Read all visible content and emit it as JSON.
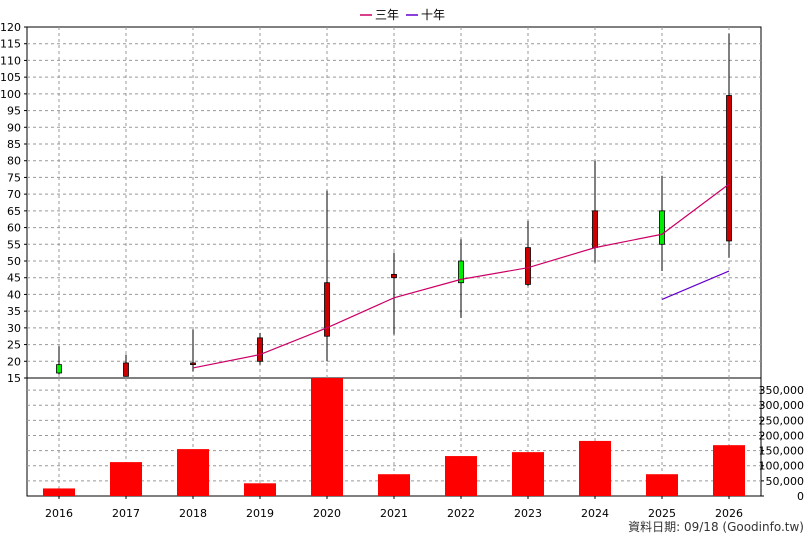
{
  "legend": {
    "items": [
      {
        "label": "三年",
        "color": "#cc0066"
      },
      {
        "label": "十年",
        "color": "#6600cc"
      }
    ]
  },
  "footer": {
    "text": "資料日期: 09/18  (Goodinfo.tw)"
  },
  "colors": {
    "up": "#cc0000",
    "down": "#00ee00",
    "volume": "#ff0000",
    "grid": "#999999"
  },
  "chart_data": [
    {
      "type": "candlestick",
      "categories": [
        "2016",
        "2017",
        "2018",
        "2019",
        "2020",
        "2021",
        "2022",
        "2023",
        "2024",
        "2025",
        "2026"
      ],
      "ylim": [
        15,
        120
      ],
      "yticks": [
        15,
        20,
        25,
        30,
        35,
        40,
        45,
        50,
        55,
        60,
        65,
        70,
        75,
        80,
        85,
        90,
        95,
        100,
        105,
        110,
        115,
        120
      ],
      "ohlc": [
        {
          "open": 19,
          "high": 24.5,
          "low": 16,
          "close": 16.5
        },
        {
          "open": 15.5,
          "high": 22,
          "low": 15.5,
          "close": 19.5
        },
        {
          "open": 19,
          "high": 29.5,
          "low": 17,
          "close": 19.5
        },
        {
          "open": 20,
          "high": 28.5,
          "low": 19,
          "close": 27
        },
        {
          "open": 27.5,
          "high": 71,
          "low": 20,
          "close": 43.5
        },
        {
          "open": 45,
          "high": 52.5,
          "low": 28,
          "close": 46
        },
        {
          "open": 50,
          "high": 56.5,
          "low": 33,
          "close": 43.5
        },
        {
          "open": 43,
          "high": 62,
          "low": 42.5,
          "close": 54
        },
        {
          "open": 54,
          "high": 80,
          "low": 49.5,
          "close": 65
        },
        {
          "open": 65,
          "high": 75.5,
          "low": 47,
          "close": 55
        },
        {
          "open": 56,
          "high": 118,
          "low": 51,
          "close": 99.5
        }
      ],
      "series": [
        {
          "name": "三年",
          "color": "#cc0066",
          "values": [
            null,
            null,
            18,
            22,
            30,
            39,
            44.5,
            48,
            54,
            58,
            73
          ]
        },
        {
          "name": "十年",
          "color": "#6600cc",
          "values": [
            null,
            null,
            null,
            null,
            null,
            null,
            null,
            null,
            null,
            38.5,
            47
          ]
        }
      ],
      "grid": true
    },
    {
      "type": "bar",
      "categories": [
        "2016",
        "2017",
        "2018",
        "2019",
        "2020",
        "2021",
        "2022",
        "2023",
        "2024",
        "2025",
        "2026"
      ],
      "values": [
        25000,
        112000,
        155000,
        42000,
        390000,
        72000,
        132000,
        145000,
        182000,
        72000,
        168000
      ],
      "ylim": [
        0,
        390000
      ],
      "ytick_values": [
        0,
        50000,
        100000,
        150000,
        200000,
        250000,
        300000,
        350000
      ],
      "ytick_labels": [
        "0",
        "50,000",
        "100,000",
        "150,000",
        "200,000",
        "250,000",
        "300,000",
        "350,000"
      ],
      "grid": true
    }
  ]
}
